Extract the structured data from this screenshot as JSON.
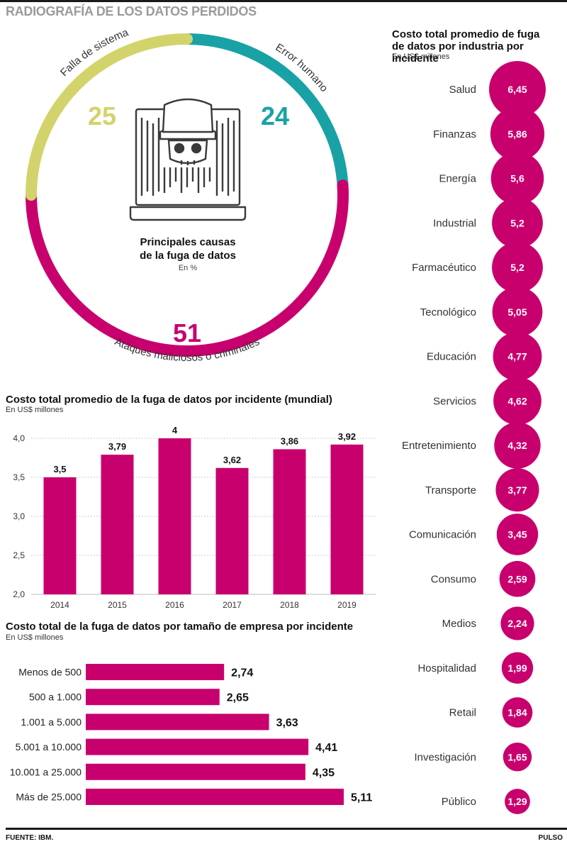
{
  "header": {
    "title": "RADIOGRAFÍA DE LOS DATOS PERDIDOS"
  },
  "footer": {
    "source": "FUENTE: IBM.",
    "brand": "PULSO"
  },
  "colors": {
    "magenta": "#c8006e",
    "yellow": "#d3d36b",
    "teal": "#19a2a6",
    "title_gray": "#9a9a9a"
  },
  "icons": {
    "center": "hacker-laptop-icon"
  },
  "chart_data": [
    {
      "type": "pie",
      "variant": "donut",
      "title": "Principales causas de la fuga de datos",
      "title_line1": "Principales causas",
      "title_line2": "de la fuga de datos",
      "unit": "En %",
      "categories": [
        "Falla de sistema",
        "Error humano",
        "Ataques maliciosos o criminales"
      ],
      "values": [
        25,
        24,
        51
      ],
      "value_labels": [
        "25",
        "24",
        "51"
      ],
      "colors": [
        "#d3d36b",
        "#19a2a6",
        "#c8006e"
      ]
    },
    {
      "type": "bar",
      "title": "Costo  total promedio de la fuga de datos por incidente (mundial)",
      "unit": "En US$ millones",
      "categories": [
        "2014",
        "2015",
        "2016",
        "2017",
        "2018",
        "2019"
      ],
      "values": [
        3.5,
        3.79,
        4,
        3.62,
        3.86,
        3.92
      ],
      "value_labels": [
        "3,5",
        "3,79",
        "4",
        "3,62",
        "3,86",
        "3,92"
      ],
      "ylim": [
        2.0,
        4.0
      ],
      "yticks": [
        2.0,
        2.5,
        3.0,
        3.5,
        4.0
      ],
      "ytick_labels": [
        "2,0",
        "2,5",
        "3,0",
        "3,5",
        "4,0"
      ],
      "grid": true,
      "color": "#c8006e"
    },
    {
      "type": "bar",
      "orientation": "horizontal",
      "title": "Costo total de la fuga de datos por tamaño de empresa por incidente",
      "unit": "En US$ millones",
      "categories": [
        "Menos de 500",
        "500 a 1.000",
        "1.001 a 5.000",
        "5.001 a 10.000",
        "10.001 a 25.000",
        "Más de 25.000"
      ],
      "values": [
        2.74,
        2.65,
        3.63,
        4.41,
        4.35,
        5.11
      ],
      "value_labels": [
        "2,74",
        "2,65",
        "3,63",
        "4,41",
        "4,35",
        "5,11"
      ],
      "color": "#c8006e"
    },
    {
      "type": "bubble",
      "title": "Costo total promedio de fuga de datos por industria por incidente",
      "title_line1": "Costo total promedio de fuga",
      "title_line2": "de datos por industria por incidente",
      "unit": "En US$ millones",
      "categories": [
        "Salud",
        "Finanzas",
        "Energía",
        "Industrial",
        "Farmacéutico",
        "Tecnológico",
        "Educación",
        "Servicios",
        "Entretenimiento",
        "Transporte",
        "Comunicación",
        "Consumo",
        "Medios",
        "Hospitalidad",
        "Retail",
        "Investigación",
        "Público"
      ],
      "values": [
        6.45,
        5.86,
        5.6,
        5.2,
        5.2,
        5.05,
        4.77,
        4.62,
        4.32,
        3.77,
        3.45,
        2.59,
        2.24,
        1.99,
        1.84,
        1.65,
        1.29
      ],
      "value_labels": [
        "6,45",
        "5,86",
        "5,6",
        "5,2",
        "5,2",
        "5,05",
        "4,77",
        "4,62",
        "4,32",
        "3,77",
        "3,45",
        "2,59",
        "2,24",
        "1,99",
        "1,84",
        "1,65",
        "1,29"
      ],
      "color": "#c8006e"
    }
  ]
}
